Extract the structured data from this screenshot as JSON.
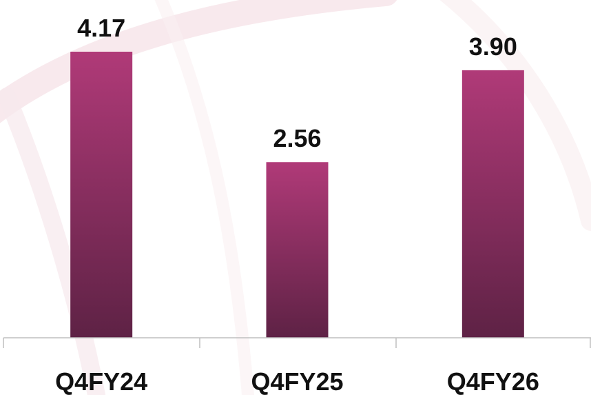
{
  "chart_data": {
    "type": "bar",
    "categories": [
      "Q4FY24",
      "Q4FY25",
      "Q4FY26"
    ],
    "values": [
      4.17,
      2.56,
      3.9
    ],
    "value_labels": [
      "4.17",
      "2.56",
      "3.90"
    ],
    "color": [
      "#b03a78",
      "#5e2245"
    ]
  }
}
